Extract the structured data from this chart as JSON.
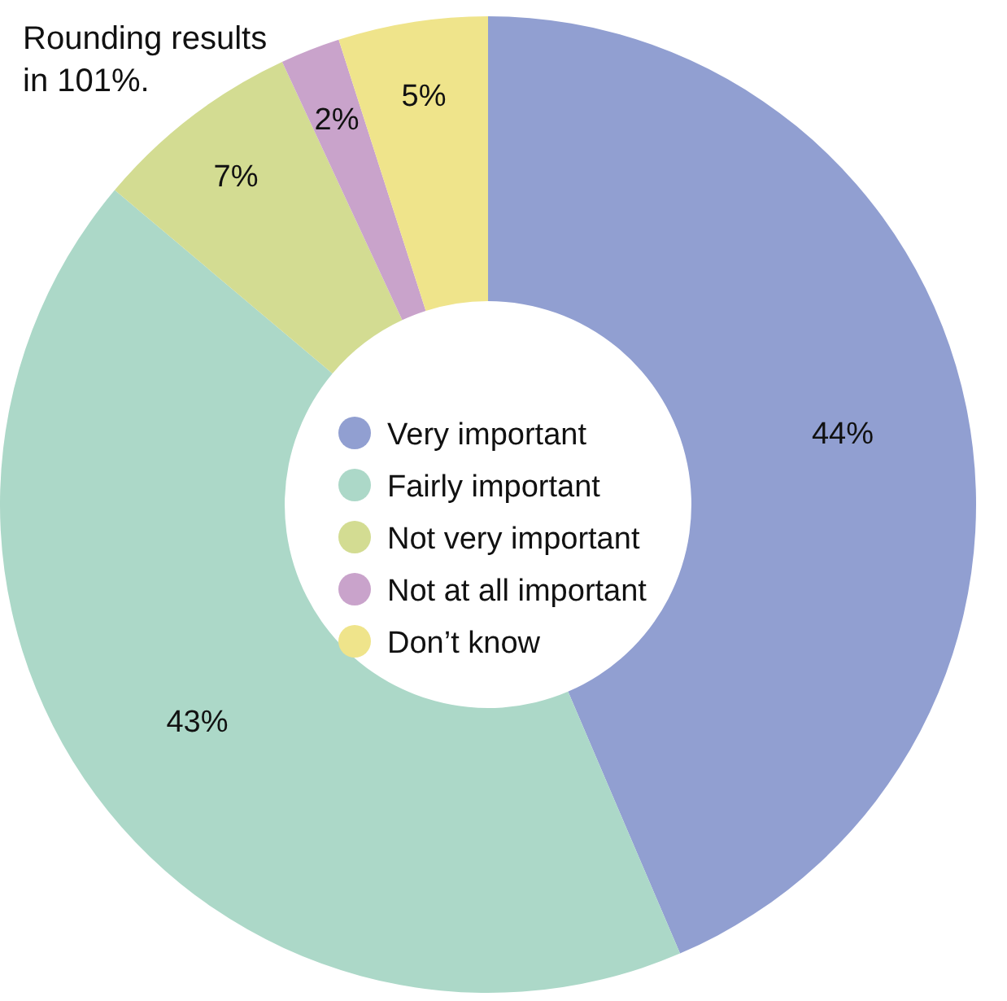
{
  "chart_data": {
    "type": "donut",
    "categories": [
      "Very important",
      "Fairly important",
      "Not very important",
      "Not at all important",
      "Don’t know"
    ],
    "values": [
      44,
      43,
      7,
      2,
      5
    ],
    "colors": [
      "#919fd1",
      "#acd8c8",
      "#d3dc92",
      "#c9a3cb",
      "#efe48b"
    ],
    "value_labels": [
      "44%",
      "43%",
      "7%",
      "2%",
      "5%"
    ],
    "legend": "center",
    "annotations": [
      "Rounding results in 101%."
    ]
  }
}
